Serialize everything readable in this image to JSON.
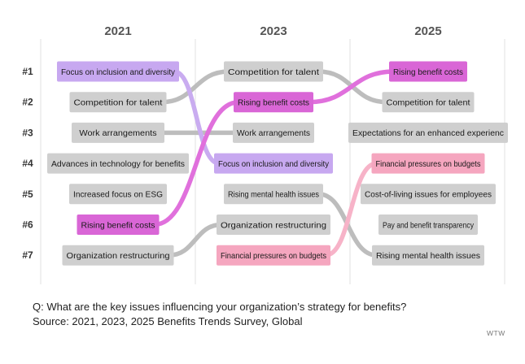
{
  "chart_data": {
    "type": "bump",
    "years": [
      "2021",
      "2023",
      "2025"
    ],
    "ranks": [
      "#1",
      "#2",
      "#3",
      "#4",
      "#5",
      "#6",
      "#7"
    ],
    "columns": [
      [
        "Focus on inclusion and diversity",
        "Competition for talent",
        "Work arrangements",
        "Advances in technology for benefits",
        "Increased focus on ESG",
        "Rising benefit costs",
        "Organization restructuring"
      ],
      [
        "Competition for talent",
        "Rising benefit costs",
        "Work arrangements",
        "Focus on inclusion and diversity",
        "Rising mental health issues",
        "Organization restructuring",
        "Financial pressures on budgets"
      ],
      [
        "Rising benefit costs",
        "Competition for talent",
        "Expectations for an enhanced experienc",
        "Financial pressures on budgets",
        "Cost-of-living issues for employees",
        "Pay and benefit transparency",
        "Rising mental health issues"
      ]
    ],
    "highlight_colors": {
      "Rising benefit costs": "#d966d6",
      "Focus on inclusion and diversity": "#c7a8f0",
      "Financial pressures on budgets": "#f5a6bf"
    },
    "line_colors": {
      "Rising benefit costs": "#e070dc",
      "Focus on inclusion and diversity": "#c9acf0",
      "Financial pressures on budgets": "#f7b3c8"
    },
    "default_box_color": "#cfcfcf",
    "default_line_color": "#bdbdbd",
    "question": "Q: What are the key issues influencing your organization’s strategy for benefits?",
    "source": "Source: 2021, 2023, 2025 Benefits Trends Survey, Global",
    "brand": "WTW"
  }
}
